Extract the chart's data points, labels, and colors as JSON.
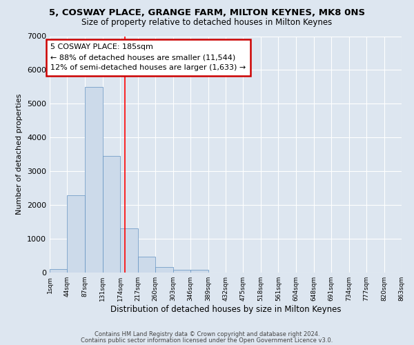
{
  "title1": "5, COSWAY PLACE, GRANGE FARM, MILTON KEYNES, MK8 0NS",
  "title2": "Size of property relative to detached houses in Milton Keynes",
  "xlabel": "Distribution of detached houses by size in Milton Keynes",
  "ylabel": "Number of detached properties",
  "bar_values": [
    100,
    2280,
    5500,
    3450,
    1300,
    480,
    160,
    80,
    80,
    0,
    0,
    0,
    0,
    0,
    0,
    0,
    0,
    0,
    0,
    0
  ],
  "bin_edges": [
    1,
    44,
    87,
    131,
    174,
    217,
    260,
    303,
    346,
    389,
    432,
    475,
    518,
    561,
    604,
    648,
    691,
    734,
    777,
    820,
    863
  ],
  "x_tick_labels": [
    "1sqm",
    "44sqm",
    "87sqm",
    "131sqm",
    "174sqm",
    "217sqm",
    "260sqm",
    "303sqm",
    "346sqm",
    "389sqm",
    "432sqm",
    "475sqm",
    "518sqm",
    "561sqm",
    "604sqm",
    "648sqm",
    "691sqm",
    "734sqm",
    "777sqm",
    "820sqm",
    "863sqm"
  ],
  "bar_color": "#ccdaea",
  "bar_edge_color": "#6090c0",
  "redline_x": 185,
  "ylim": [
    0,
    7000
  ],
  "yticks": [
    0,
    1000,
    2000,
    3000,
    4000,
    5000,
    6000,
    7000
  ],
  "annotation_title": "5 COSWAY PLACE: 185sqm",
  "annotation_line1": "← 88% of detached houses are smaller (11,544)",
  "annotation_line2": "12% of semi-detached houses are larger (1,633) →",
  "annotation_box_color": "#ffffff",
  "annotation_box_edge": "#cc0000",
  "background_color": "#dde6f0",
  "plot_bg_color": "#dde6f0",
  "grid_color": "#ffffff",
  "footer1": "Contains HM Land Registry data © Crown copyright and database right 2024.",
  "footer2": "Contains public sector information licensed under the Open Government Licence v3.0."
}
